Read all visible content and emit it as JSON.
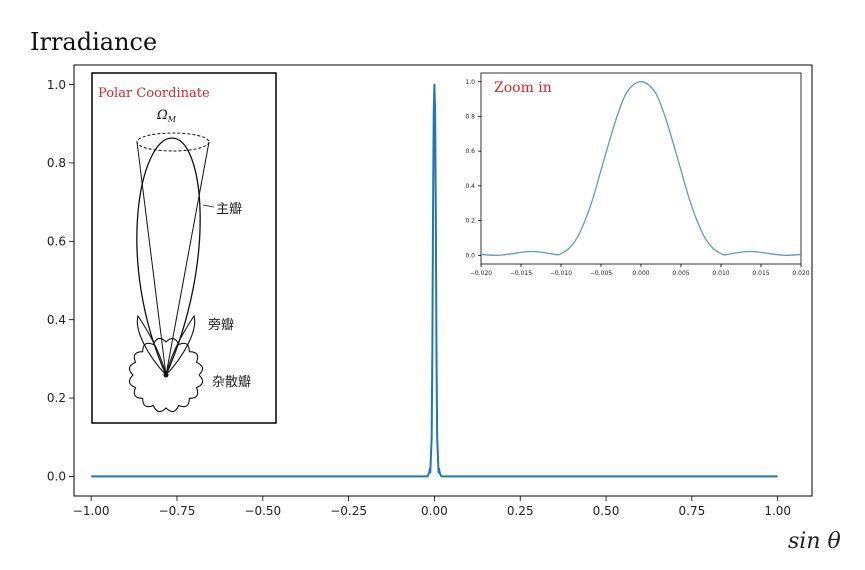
{
  "chart_data": [
    {
      "type": "line",
      "title": "Irradiance",
      "xlabel": "sin θ",
      "ylabel": "",
      "xlim": [
        -1.05,
        1.1
      ],
      "ylim": [
        -0.05,
        1.05
      ],
      "xticks": [
        -1.0,
        -0.75,
        -0.5,
        -0.25,
        0.0,
        0.25,
        0.5,
        0.75,
        1.0
      ],
      "xtick_labels": [
        "−1.00",
        "−0.75",
        "−0.50",
        "−0.25",
        "0.00",
        "0.25",
        "0.50",
        "0.75",
        "1.00"
      ],
      "yticks": [
        0.0,
        0.2,
        0.4,
        0.6,
        0.8,
        1.0
      ],
      "ytick_labels": [
        "0.0",
        "0.2",
        "0.4",
        "0.6",
        "0.8",
        "1.0"
      ],
      "grid": false,
      "series": [
        {
          "color": "#1f77b4",
          "x": [
            -1.0,
            -0.5,
            -0.1,
            -0.03,
            -0.02,
            -0.015,
            -0.0135,
            -0.012,
            -0.008,
            -0.006,
            -0.004,
            -0.002,
            0.0,
            0.002,
            0.004,
            0.006,
            0.008,
            0.012,
            0.0135,
            0.015,
            0.02,
            0.03,
            0.1,
            0.5,
            1.0
          ],
          "values": [
            0.0,
            0.0,
            0.0,
            0.0,
            0.0,
            0.01,
            0.02,
            0.01,
            0.1,
            0.32,
            0.68,
            0.93,
            1.0,
            0.93,
            0.68,
            0.32,
            0.1,
            0.01,
            0.02,
            0.01,
            0.0,
            0.0,
            0.0,
            0.0,
            0.0
          ]
        }
      ]
    },
    {
      "type": "line",
      "title": "Zoom in",
      "xlim": [
        -0.02,
        0.02
      ],
      "ylim": [
        -0.05,
        1.05
      ],
      "xticks": [
        -0.02,
        -0.015,
        -0.01,
        -0.005,
        0.0,
        0.005,
        0.01,
        0.015,
        0.02
      ],
      "xtick_labels": [
        "−0.020",
        "−0.015",
        "−0.010",
        "−0.005",
        "0.000",
        "0.005",
        "0.010",
        "0.015",
        "0.020"
      ],
      "yticks": [
        0.0,
        0.2,
        0.4,
        0.6,
        0.8,
        1.0
      ],
      "ytick_labels": [
        "0.0",
        "0.2",
        "0.4",
        "0.6",
        "0.8",
        "1.0"
      ],
      "series": [
        {
          "color": "#5b9bc8",
          "x": [
            -0.02,
            -0.018,
            -0.016,
            -0.0145,
            -0.0135,
            -0.012,
            -0.0105,
            -0.01,
            -0.009,
            -0.008,
            -0.007,
            -0.006,
            -0.005,
            -0.004,
            -0.003,
            -0.002,
            -0.001,
            0.0,
            0.001,
            0.002,
            0.003,
            0.004,
            0.005,
            0.006,
            0.007,
            0.008,
            0.009,
            0.01,
            0.0105,
            0.012,
            0.0135,
            0.0145,
            0.016,
            0.018,
            0.02
          ],
          "values": [
            0.005,
            0.0,
            0.01,
            0.02,
            0.022,
            0.015,
            0.003,
            0.01,
            0.04,
            0.1,
            0.2,
            0.33,
            0.49,
            0.65,
            0.8,
            0.92,
            0.98,
            1.0,
            0.98,
            0.92,
            0.8,
            0.65,
            0.49,
            0.33,
            0.2,
            0.1,
            0.04,
            0.01,
            0.003,
            0.015,
            0.022,
            0.02,
            0.01,
            0.0,
            0.005
          ]
        }
      ]
    }
  ],
  "polar_inset": {
    "title": "Polar Coordinate",
    "omega_symbol": "Ω",
    "omega_subscript": "M",
    "main_lobe_label": "主瓣",
    "side_lobe_label": "旁瓣",
    "stray_lobe_label": "杂散瓣"
  },
  "colors": {
    "main_line": "#1f77b4",
    "inset_line": "#5b9bc8",
    "inset_title": "#d62728",
    "axis": "#000000",
    "text": "#222222"
  }
}
